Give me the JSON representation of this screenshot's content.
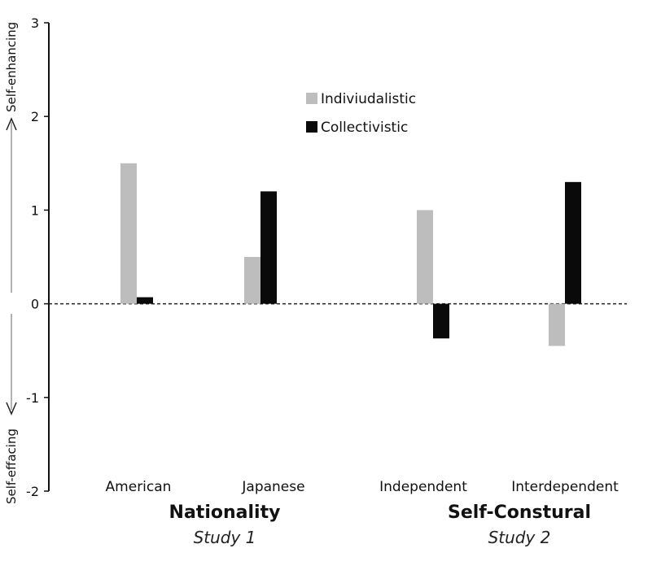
{
  "chart_data": {
    "type": "bar",
    "categories": [
      "American",
      "Japanese",
      "Independent",
      "Interdependent"
    ],
    "series": [
      {
        "name": "Indiviudalistic",
        "values": [
          1.5,
          0.5,
          1.0,
          -0.45
        ],
        "color": "#bdbdbd"
      },
      {
        "name": "Collectivistic",
        "values": [
          0.07,
          1.2,
          -0.37,
          1.3
        ],
        "color": "#0a0a0a"
      }
    ],
    "ylim": [
      -2,
      3
    ],
    "yticks": [
      -2,
      -1,
      0,
      1,
      2,
      3
    ],
    "ytick_labels": [
      "-2",
      "-1",
      "0",
      "1",
      "2",
      "3"
    ],
    "reference_line": 0,
    "legend_position": "top-center",
    "groups": [
      {
        "title": "Nationality",
        "subtitle": "Study 1",
        "categories": [
          "American",
          "Japanese"
        ]
      },
      {
        "title": "Self-Constural",
        "subtitle": "Study 2",
        "categories": [
          "Independent",
          "Interdependent"
        ]
      }
    ],
    "side_labels": {
      "top": "Self-enhancing",
      "bottom": "Self-effacing"
    }
  }
}
